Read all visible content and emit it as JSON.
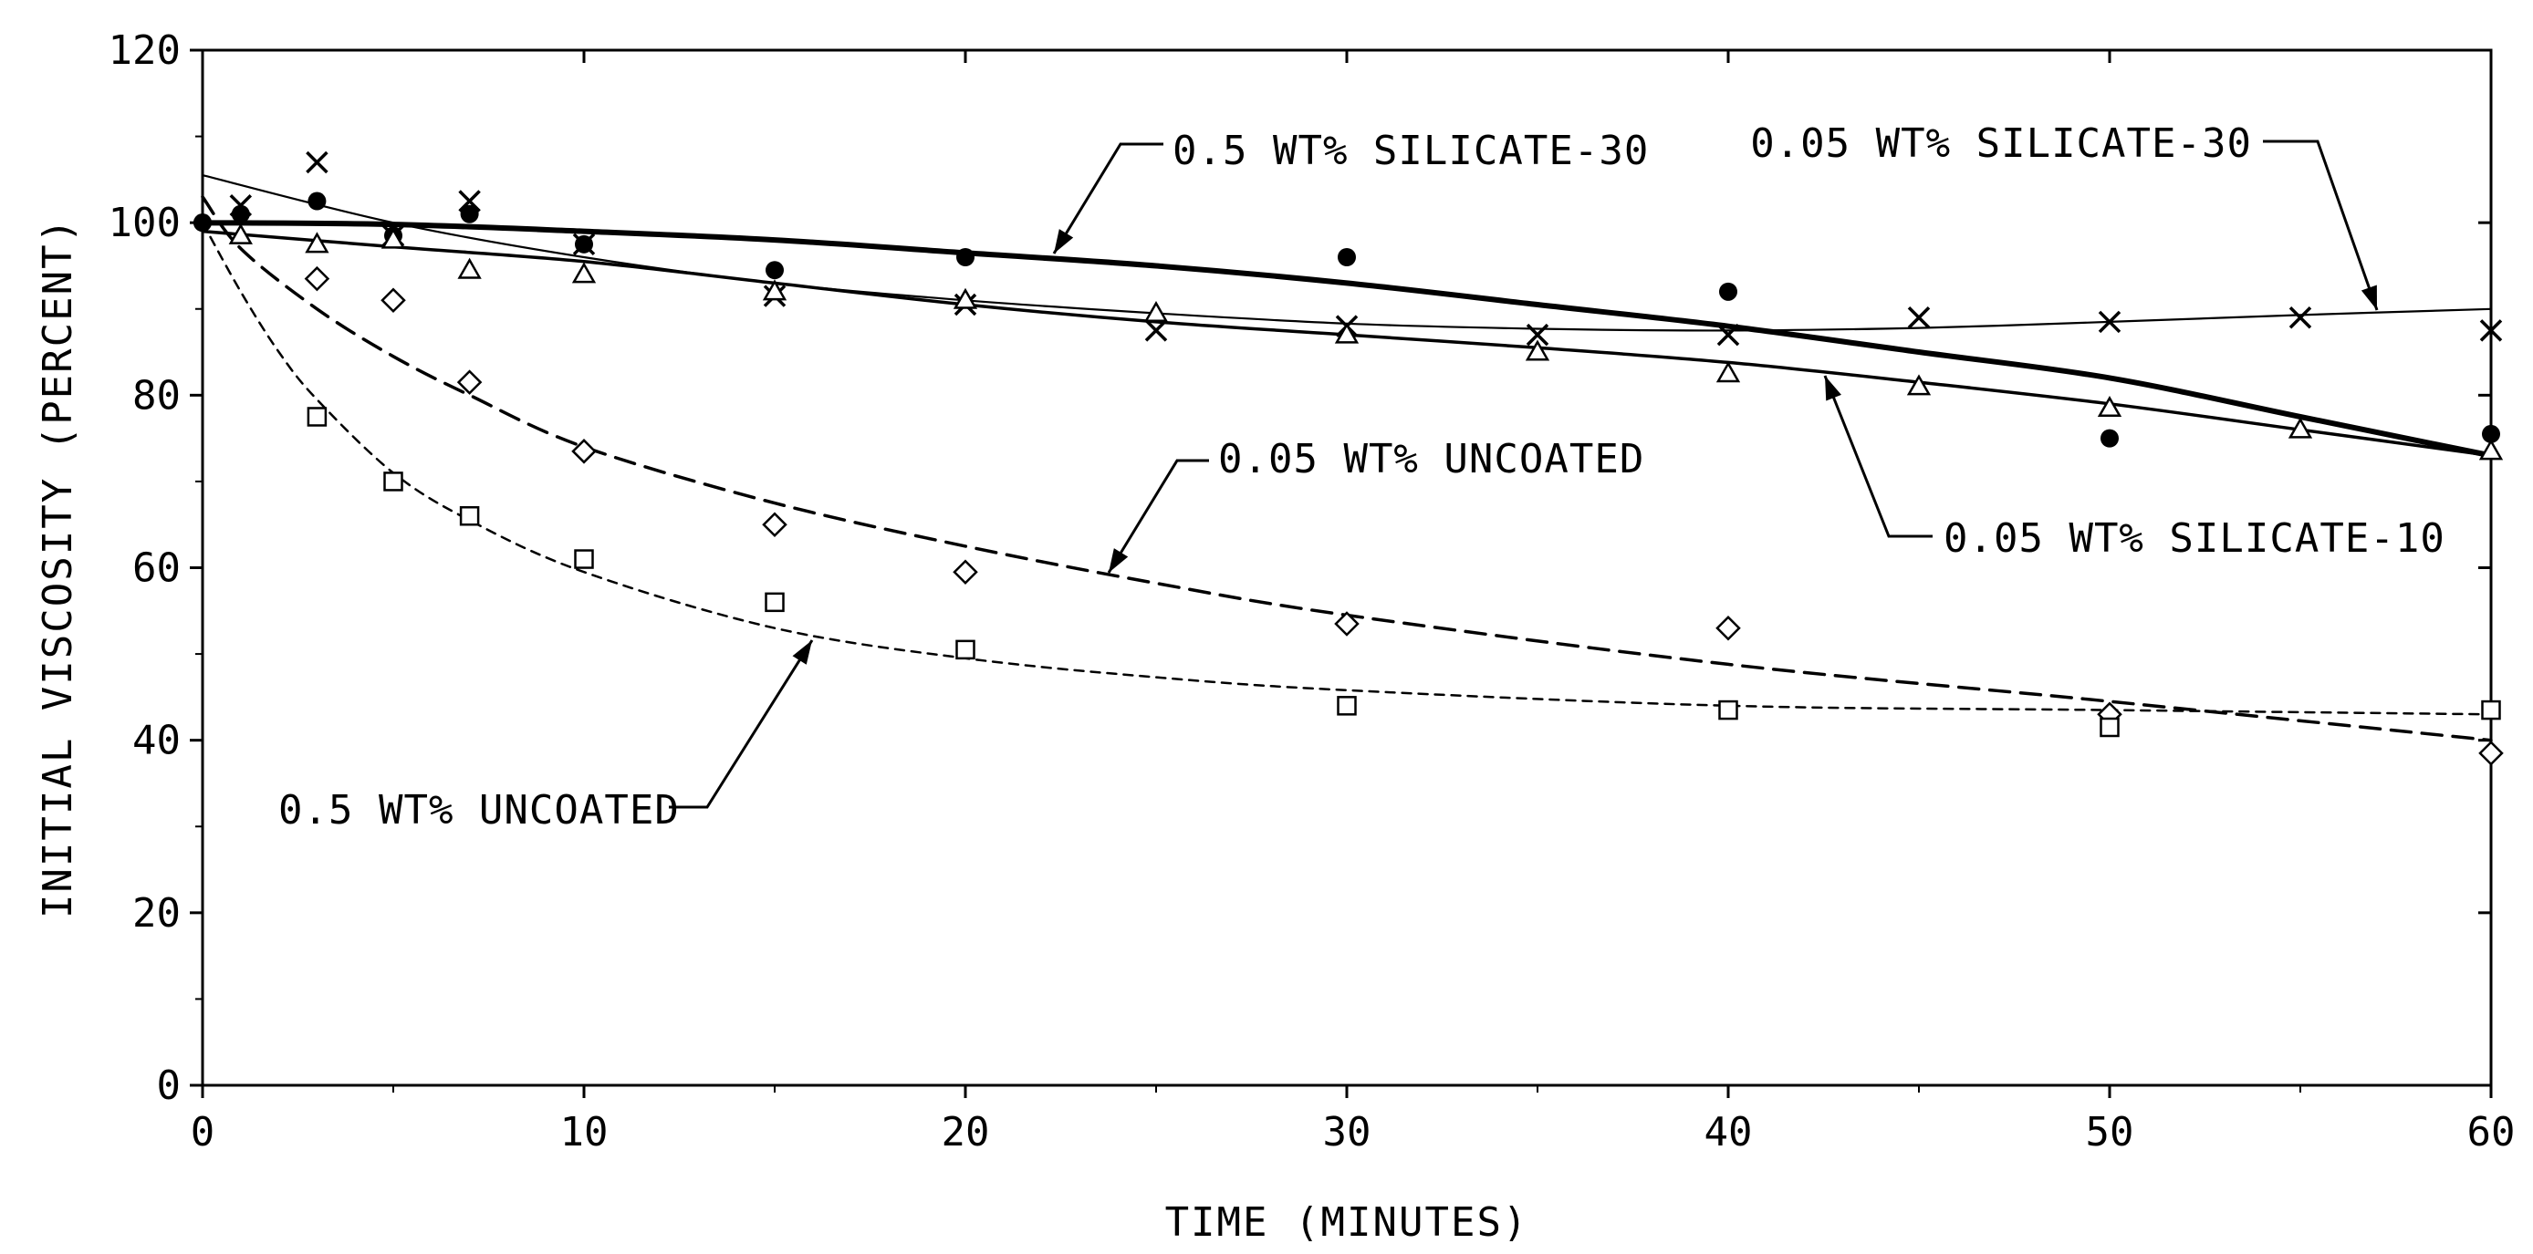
{
  "chart_data": {
    "type": "scatter",
    "xlabel": "TIME (MINUTES)",
    "ylabel": "INITIAL VISCOSITY (PERCENT)",
    "xlim": [
      0,
      60
    ],
    "ylim": [
      0,
      120
    ],
    "xticks": [
      0,
      10,
      20,
      30,
      40,
      50,
      60
    ],
    "yticks": [
      0,
      20,
      40,
      60,
      80,
      100,
      120
    ],
    "grid": false,
    "legend": "none",
    "series": [
      {
        "name": "0.5 WT% SILICATE-30",
        "marker": "filled-circle",
        "line": "thick-solid",
        "points": [
          [
            0,
            100
          ],
          [
            1,
            101
          ],
          [
            3,
            102.5
          ],
          [
            5,
            98.5
          ],
          [
            7,
            101
          ],
          [
            10,
            97.5
          ],
          [
            15,
            94.5
          ],
          [
            20,
            96
          ],
          [
            30,
            96
          ],
          [
            40,
            92
          ],
          [
            50,
            75
          ],
          [
            60,
            75.5
          ]
        ],
        "fit": [
          [
            0,
            100
          ],
          [
            5,
            99.8
          ],
          [
            10,
            99
          ],
          [
            15,
            98
          ],
          [
            20,
            96.5
          ],
          [
            25,
            95
          ],
          [
            30,
            93
          ],
          [
            35,
            90.5
          ],
          [
            40,
            88
          ],
          [
            45,
            85
          ],
          [
            50,
            82
          ],
          [
            55,
            77.5
          ],
          [
            60,
            73
          ]
        ]
      },
      {
        "name": "0.05 WT% SILICATE-30",
        "marker": "x",
        "line": "thin-solid",
        "points": [
          [
            1,
            102
          ],
          [
            3,
            107
          ],
          [
            5,
            98.5
          ],
          [
            7,
            102.5
          ],
          [
            10,
            97.5
          ],
          [
            15,
            91.5
          ],
          [
            20,
            90.5
          ],
          [
            25,
            87.5
          ],
          [
            30,
            88
          ],
          [
            35,
            87
          ],
          [
            40,
            87
          ],
          [
            45,
            89
          ],
          [
            50,
            88.5
          ],
          [
            55,
            89
          ],
          [
            60,
            87.5
          ]
        ],
        "fit": [
          [
            0,
            105.5
          ],
          [
            5,
            100
          ],
          [
            10,
            96
          ],
          [
            15,
            93
          ],
          [
            20,
            91
          ],
          [
            25,
            89.5
          ],
          [
            30,
            88.3
          ],
          [
            35,
            87.7
          ],
          [
            40,
            87.5
          ],
          [
            45,
            87.8
          ],
          [
            50,
            88.5
          ],
          [
            55,
            89.3
          ],
          [
            60,
            90
          ]
        ]
      },
      {
        "name": "0.05 WT% SILICATE-10",
        "marker": "triangle",
        "line": "medium-solid",
        "points": [
          [
            1,
            98.5
          ],
          [
            3,
            97.5
          ],
          [
            5,
            98
          ],
          [
            7,
            94.5
          ],
          [
            10,
            94
          ],
          [
            15,
            92
          ],
          [
            20,
            91
          ],
          [
            25,
            89.5
          ],
          [
            30,
            87
          ],
          [
            35,
            85
          ],
          [
            40,
            82.5
          ],
          [
            45,
            81
          ],
          [
            50,
            78.5
          ],
          [
            55,
            76
          ],
          [
            60,
            73.5
          ]
        ],
        "fit": [
          [
            0,
            99
          ],
          [
            5,
            97.2
          ],
          [
            10,
            95.5
          ],
          [
            15,
            93
          ],
          [
            20,
            90.5
          ],
          [
            25,
            88.5
          ],
          [
            30,
            87
          ],
          [
            35,
            85.5
          ],
          [
            40,
            83.8
          ],
          [
            45,
            81.5
          ],
          [
            50,
            79
          ],
          [
            55,
            76
          ],
          [
            60,
            73
          ]
        ]
      },
      {
        "name": "0.05 WT% UNCOATED",
        "marker": "diamond",
        "line": "dashed",
        "points": [
          [
            3,
            93.5
          ],
          [
            5,
            91
          ],
          [
            7,
            81.5
          ],
          [
            10,
            73.5
          ],
          [
            15,
            65
          ],
          [
            20,
            59.5
          ],
          [
            30,
            53.5
          ],
          [
            40,
            53
          ],
          [
            50,
            43
          ],
          [
            60,
            38.5
          ]
        ],
        "fit": [
          [
            0,
            103
          ],
          [
            1,
            97
          ],
          [
            3,
            90
          ],
          [
            5,
            84.5
          ],
          [
            7,
            80
          ],
          [
            10,
            74
          ],
          [
            15,
            67.5
          ],
          [
            20,
            62.5
          ],
          [
            25,
            58.2
          ],
          [
            30,
            54.5
          ],
          [
            40,
            48.8
          ],
          [
            50,
            44.5
          ],
          [
            60,
            40
          ]
        ]
      },
      {
        "name": "0.5 WT% UNCOATED",
        "marker": "square",
        "line": "short-dashed",
        "points": [
          [
            3,
            77.5
          ],
          [
            5,
            70
          ],
          [
            7,
            66
          ],
          [
            10,
            61
          ],
          [
            15,
            56
          ],
          [
            20,
            50.5
          ],
          [
            30,
            44
          ],
          [
            40,
            43.5
          ],
          [
            50,
            41.5
          ],
          [
            60,
            43.5
          ]
        ],
        "fit": [
          [
            0,
            100
          ],
          [
            1,
            92
          ],
          [
            2,
            85
          ],
          [
            3,
            79.5
          ],
          [
            5,
            71
          ],
          [
            7,
            65.5
          ],
          [
            10,
            59.5
          ],
          [
            15,
            53
          ],
          [
            20,
            49.5
          ],
          [
            25,
            47.3
          ],
          [
            30,
            45.8
          ],
          [
            40,
            44
          ],
          [
            50,
            43.5
          ],
          [
            60,
            43
          ]
        ]
      }
    ],
    "annotations": [
      {
        "text": "0.5 WT% SILICATE-30",
        "series": "0.5 WT% SILICATE-30"
      },
      {
        "text": "0.05 WT% SILICATE-30",
        "series": "0.05 WT% SILICATE-30"
      },
      {
        "text": "0.05 WT% UNCOATED",
        "series": "0.05 WT% UNCOATED"
      },
      {
        "text": "0.05 WT% SILICATE-10",
        "series": "0.05 WT% SILICATE-10"
      },
      {
        "text": "0.5 WT% UNCOATED",
        "series": "0.5 WT% UNCOATED"
      }
    ]
  }
}
